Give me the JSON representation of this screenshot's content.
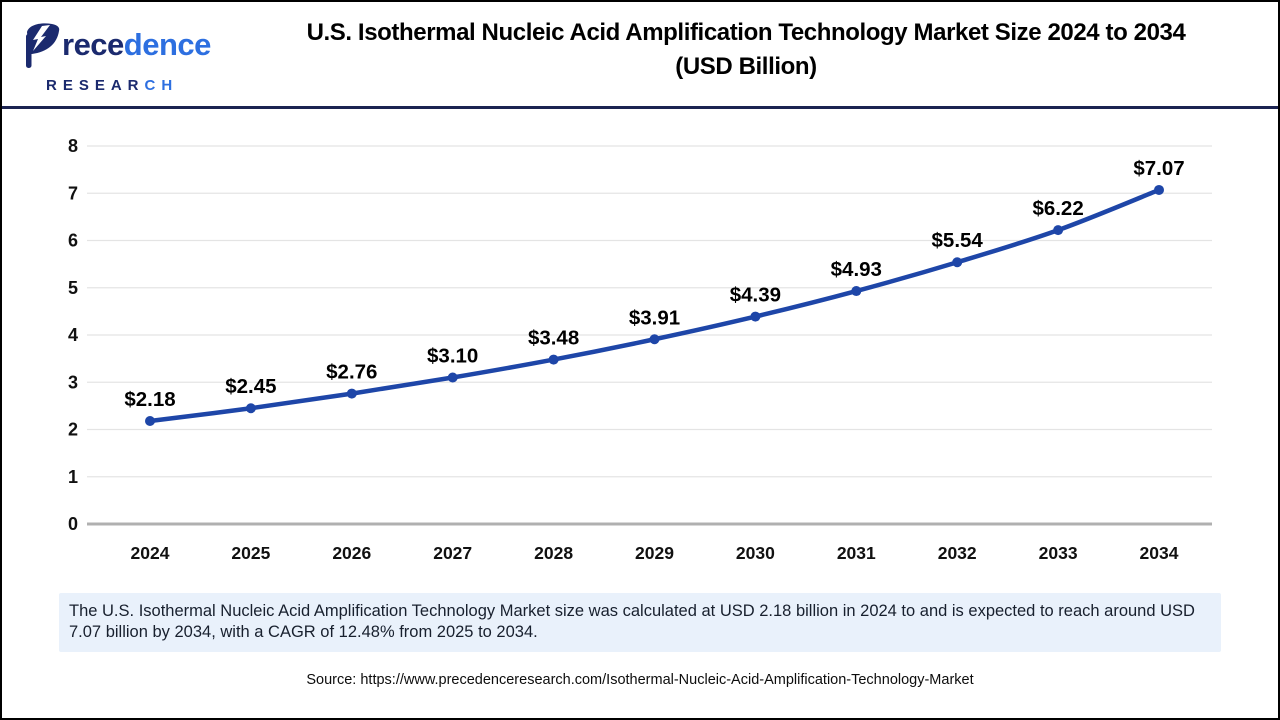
{
  "brand": {
    "name": "Precedence Research",
    "word_part_navy": "rece",
    "word_part_blue": "dence",
    "sub_part_navy": "RESEAR",
    "sub_part_blue": "CH",
    "navy_color": "#1b2a6e",
    "blue_color": "#2d6fe0"
  },
  "header": {
    "title_line1": "U.S. Isothermal Nucleic Acid Amplification Technology Market Size 2024 to 2034",
    "title_line2": "(USD Billion)"
  },
  "chart_data": {
    "type": "line",
    "title": "U.S. Isothermal Nucleic Acid Amplification Technology Market Size 2024 to 2034 (USD Billion)",
    "categories": [
      "2024",
      "2025",
      "2026",
      "2027",
      "2028",
      "2029",
      "2030",
      "2031",
      "2032",
      "2033",
      "2034"
    ],
    "values": [
      2.18,
      2.45,
      2.76,
      3.1,
      3.48,
      3.91,
      4.39,
      4.93,
      5.54,
      6.22,
      7.07
    ],
    "point_labels": [
      "$2.18",
      "$2.45",
      "$2.76",
      "$3.10",
      "$3.48",
      "$3.91",
      "$4.39",
      "$4.93",
      "$5.54",
      "$6.22",
      "$7.07"
    ],
    "xlabel": "",
    "ylabel": "",
    "ylim": [
      0,
      8
    ],
    "yticks": [
      0,
      1,
      2,
      3,
      4,
      5,
      6,
      7,
      8
    ],
    "grid": "horizontal",
    "legend": "none",
    "line_color": "#1e46a8",
    "marker_color": "#1e46a8",
    "gridline_color": "#e4e4e4",
    "zeroline_color": "#b0b0b0",
    "tick_label_color": "#111111",
    "data_label_color": "#000000"
  },
  "summary": {
    "text": "The U.S. Isothermal Nucleic Acid Amplification Technology Market size was calculated at USD 2.18 billion in 2024 to and is expected to reach around USD 7.07 billion by 2034, with a CAGR of 12.48% from 2025 to 2034."
  },
  "source": {
    "text": "Source: https://www.precedenceresearch.com/Isothermal-Nucleic-Acid-Amplification-Technology-Market"
  }
}
